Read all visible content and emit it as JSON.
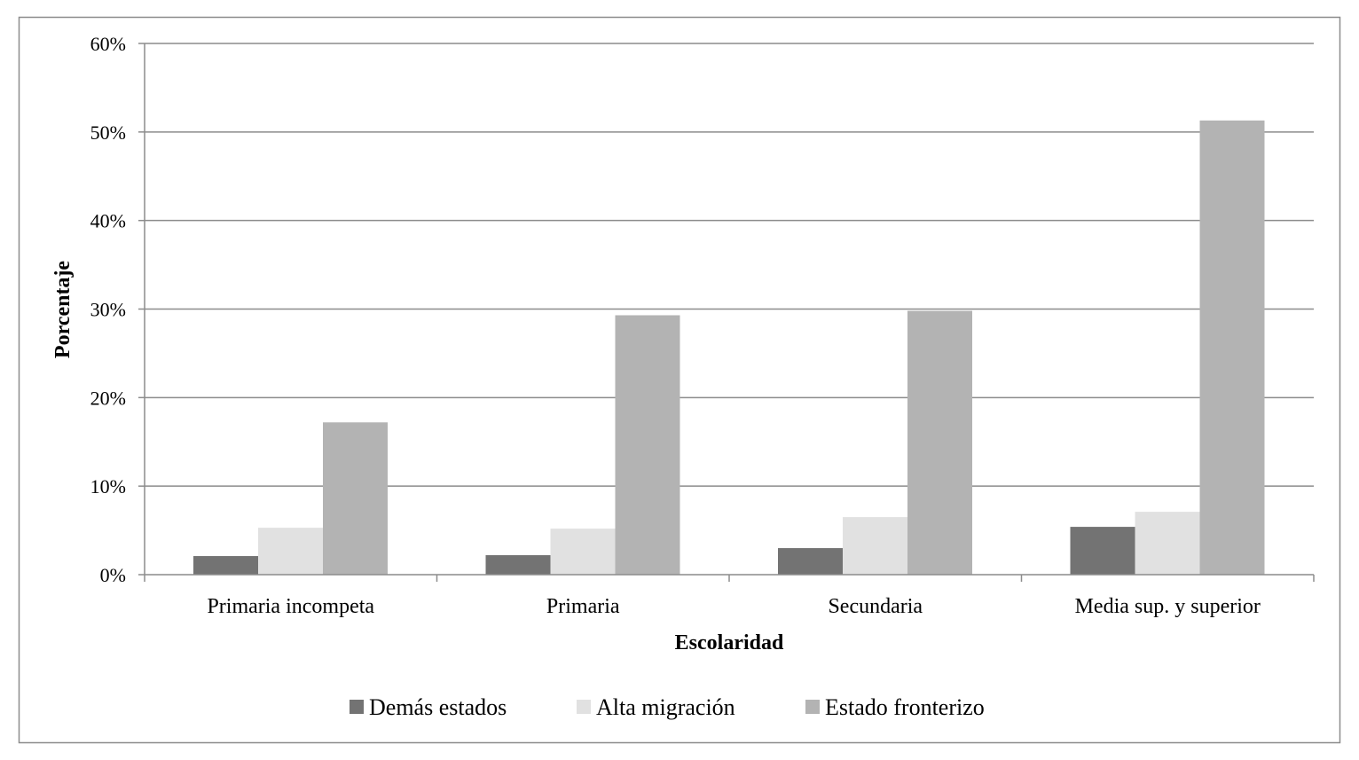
{
  "chart_data": {
    "type": "bar",
    "categories": [
      "Primaria incompeta",
      "Primaria",
      "Secundaria",
      "Media sup. y superior"
    ],
    "series": [
      {
        "name": "Demás estados",
        "values": [
          2.1,
          2.2,
          3.0,
          5.4
        ],
        "color": "#737373"
      },
      {
        "name": "Alta migración",
        "values": [
          5.3,
          5.2,
          6.5,
          7.1
        ],
        "color": "#e1e1e1"
      },
      {
        "name": "Estado fronterizo",
        "values": [
          17.2,
          29.3,
          29.8,
          51.3
        ],
        "color": "#b3b3b3"
      }
    ],
    "xlabel": "Escolaridad",
    "ylabel": "Porcentaje",
    "ylim": [
      0,
      60
    ],
    "yticks": [
      "0%",
      "10%",
      "20%",
      "30%",
      "40%",
      "50%",
      "60%"
    ],
    "grid": true,
    "legend": "bottom"
  }
}
